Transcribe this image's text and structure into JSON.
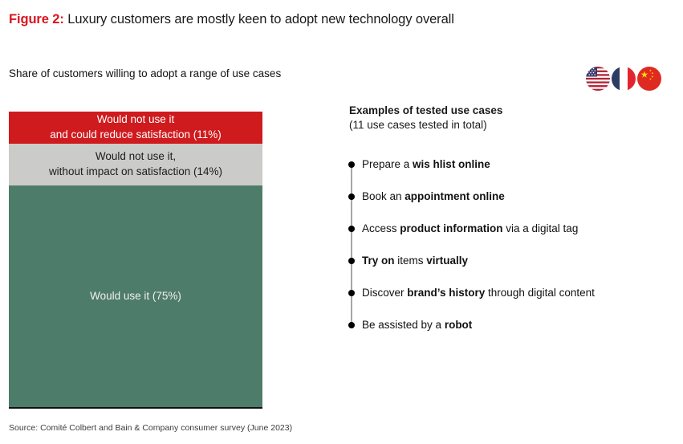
{
  "header": {
    "figure_label": "Figure 2:",
    "title": " Luxury customers are mostly keen to adopt new technology overall",
    "subtitle": "Share of customers willing to adopt a range of use cases",
    "flags": [
      "us-flag",
      "france-flag",
      "china-flag"
    ],
    "accent_color": "#d8151e"
  },
  "chart_data": {
    "type": "bar",
    "stacked": true,
    "orientation": "vertical",
    "unit": "%",
    "title": "Share of customers willing to adopt a range of use cases",
    "categories": [
      "Share of customers"
    ],
    "series": [
      {
        "name": "Would not use it and could reduce satisfaction",
        "value": 11
      },
      {
        "name": "Would not use it, without impact on satisfaction",
        "value": 14
      },
      {
        "name": "Would use it",
        "value": 75
      }
    ],
    "segments": [
      {
        "key": "would-not-use-reduce-satisfaction",
        "value": 11,
        "color": "#cf1a1e",
        "text_color": "#ffffff",
        "label_lines": [
          "Would not use it",
          "and could reduce satisfaction (11%)"
        ]
      },
      {
        "key": "would-not-use-no-impact",
        "value": 14,
        "color": "#cbcbca",
        "text_color": "#1c1c1c",
        "label_lines": [
          "Would not use it,",
          "without impact on satisfaction (14%)"
        ]
      },
      {
        "key": "would-use",
        "value": 75,
        "color": "#4e7c6b",
        "text_color": "#f3f1ea",
        "label_lines": [
          "Would use it (75%)"
        ]
      }
    ]
  },
  "use_cases": {
    "heading": "Examples of tested use cases",
    "subheading": "(11 use cases tested in total)",
    "items": [
      {
        "segments": [
          {
            "t": "Prepare a ",
            "b": false
          },
          {
            "t": "wis hlist online",
            "b": true
          }
        ]
      },
      {
        "segments": [
          {
            "t": "Book an ",
            "b": false
          },
          {
            "t": "appointment online",
            "b": true
          }
        ]
      },
      {
        "segments": [
          {
            "t": "Access ",
            "b": false
          },
          {
            "t": "product information",
            "b": true
          },
          {
            "t": " via a digital tag",
            "b": false
          }
        ]
      },
      {
        "segments": [
          {
            "t": "Try on",
            "b": true
          },
          {
            "t": " items ",
            "b": false
          },
          {
            "t": "virtually",
            "b": true
          }
        ]
      },
      {
        "segments": [
          {
            "t": "Discover ",
            "b": false
          },
          {
            "t": "brand’s history",
            "b": true
          },
          {
            "t": " through digital content",
            "b": false
          }
        ]
      },
      {
        "segments": [
          {
            "t": "Be assisted by a ",
            "b": false
          },
          {
            "t": "robot",
            "b": true
          }
        ]
      }
    ]
  },
  "source": "Source: Comité Colbert and Bain & Company consumer survey (June 2023)"
}
